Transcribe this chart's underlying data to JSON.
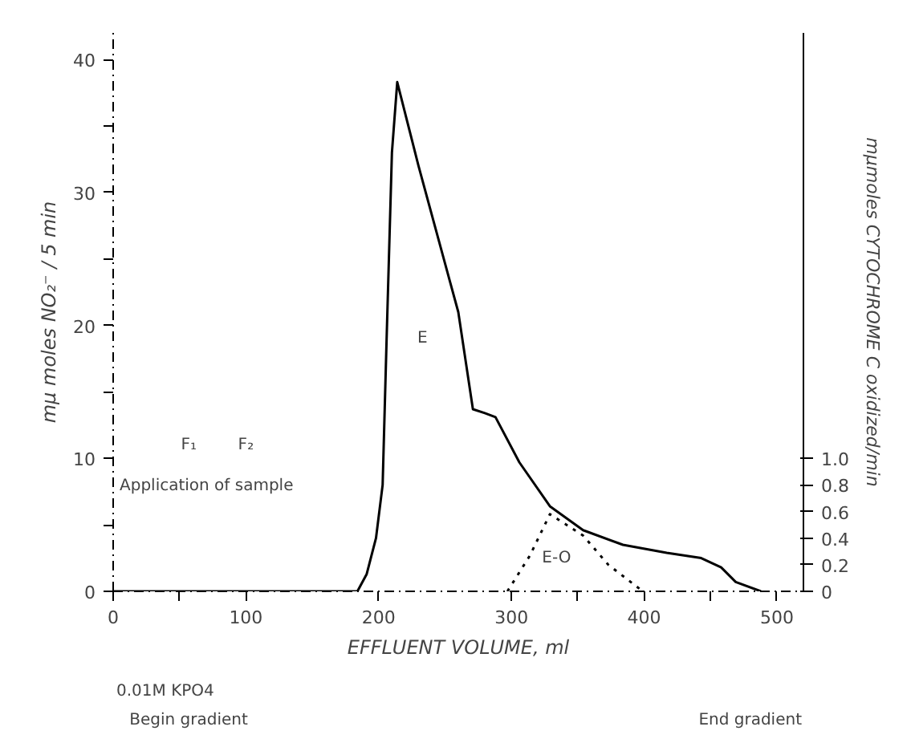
{
  "chart_data": {
    "type": "line",
    "xlabel": "EFFLUENT VOLUME, ml",
    "ylabel": "mμ moles NO₂⁻ / 5 min",
    "y2label": "mμmoles CYTOCHROME C oxidized/min",
    "xlim": [
      0,
      520
    ],
    "xticks": [
      0,
      {
        "value": 50,
        "label": null
      },
      100,
      200,
      300,
      {
        "value": 350,
        "label": null
      },
      400,
      {
        "value": 450,
        "label": null
      },
      500
    ],
    "ylim": [
      0,
      42
    ],
    "yticks": [
      0,
      {
        "value": 5,
        "label": null
      },
      10,
      {
        "value": 15,
        "label": null
      },
      20,
      {
        "value": 25,
        "label": null
      },
      30,
      {
        "value": 35,
        "label": null
      },
      40
    ],
    "y2lim": [
      0,
      4.2
    ],
    "y2ticks": [
      0,
      {
        "value": 0.2,
        "label": "0.2"
      },
      {
        "value": 0.4,
        "label": "0.4"
      },
      {
        "value": 0.6,
        "label": "0.6"
      },
      {
        "value": 0.8,
        "label": "0.8"
      },
      {
        "value": 1.0,
        "label": "1.0"
      }
    ],
    "grid": false,
    "series": [
      {
        "color": "#000000",
        "line_style": "solid",
        "x": [
          0,
          100,
          184,
          191,
          198,
          203,
          206,
          210,
          214,
          230,
          254,
          260,
          271,
          280,
          288,
          306,
          329,
          354,
          384,
          417,
          443,
          458,
          469,
          488
        ],
        "values": [
          0,
          0,
          0,
          1.3,
          4,
          8,
          19,
          33,
          38.3,
          32,
          23.2,
          21,
          13.7,
          13.4,
          13.1,
          9.7,
          6.4,
          4.6,
          3.5,
          2.9,
          2.5,
          1.8,
          0.7,
          0
        ]
      },
      {
        "color": "#000000",
        "line_style": "dotted",
        "axis": "y2",
        "x": [
          297,
          314,
          329,
          354,
          373,
          399
        ],
        "values": [
          0,
          0.27,
          0.58,
          0.42,
          0.2,
          0
        ]
      }
    ],
    "annotations": [
      {
        "text": "E",
        "x": 233,
        "y": 19
      },
      {
        "text": "E-O",
        "x": 334,
        "y": 2.5
      },
      {
        "text": "F₁",
        "x": 57,
        "y": 11
      },
      {
        "text": "F₂",
        "x": 100,
        "y": 11
      },
      "Application of sample",
      "0.01M KPO4",
      "Begin gradient",
      "End gradient"
    ]
  }
}
